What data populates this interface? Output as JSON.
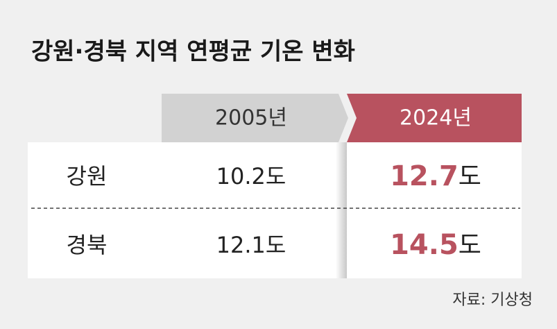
{
  "title": "강원·경북 지역 연평균 기온 변화",
  "table": {
    "columns": [
      "2005년",
      "2024년"
    ],
    "rows": [
      {
        "label": "강원",
        "cells": [
          {
            "value": "10.2",
            "unit": "도"
          },
          {
            "value": "12.7",
            "unit": "도"
          }
        ]
      },
      {
        "label": "경북",
        "cells": [
          {
            "value": "12.1",
            "unit": "도"
          },
          {
            "value": "14.5",
            "unit": "도"
          }
        ]
      }
    ]
  },
  "source": "자료: 기상청"
}
